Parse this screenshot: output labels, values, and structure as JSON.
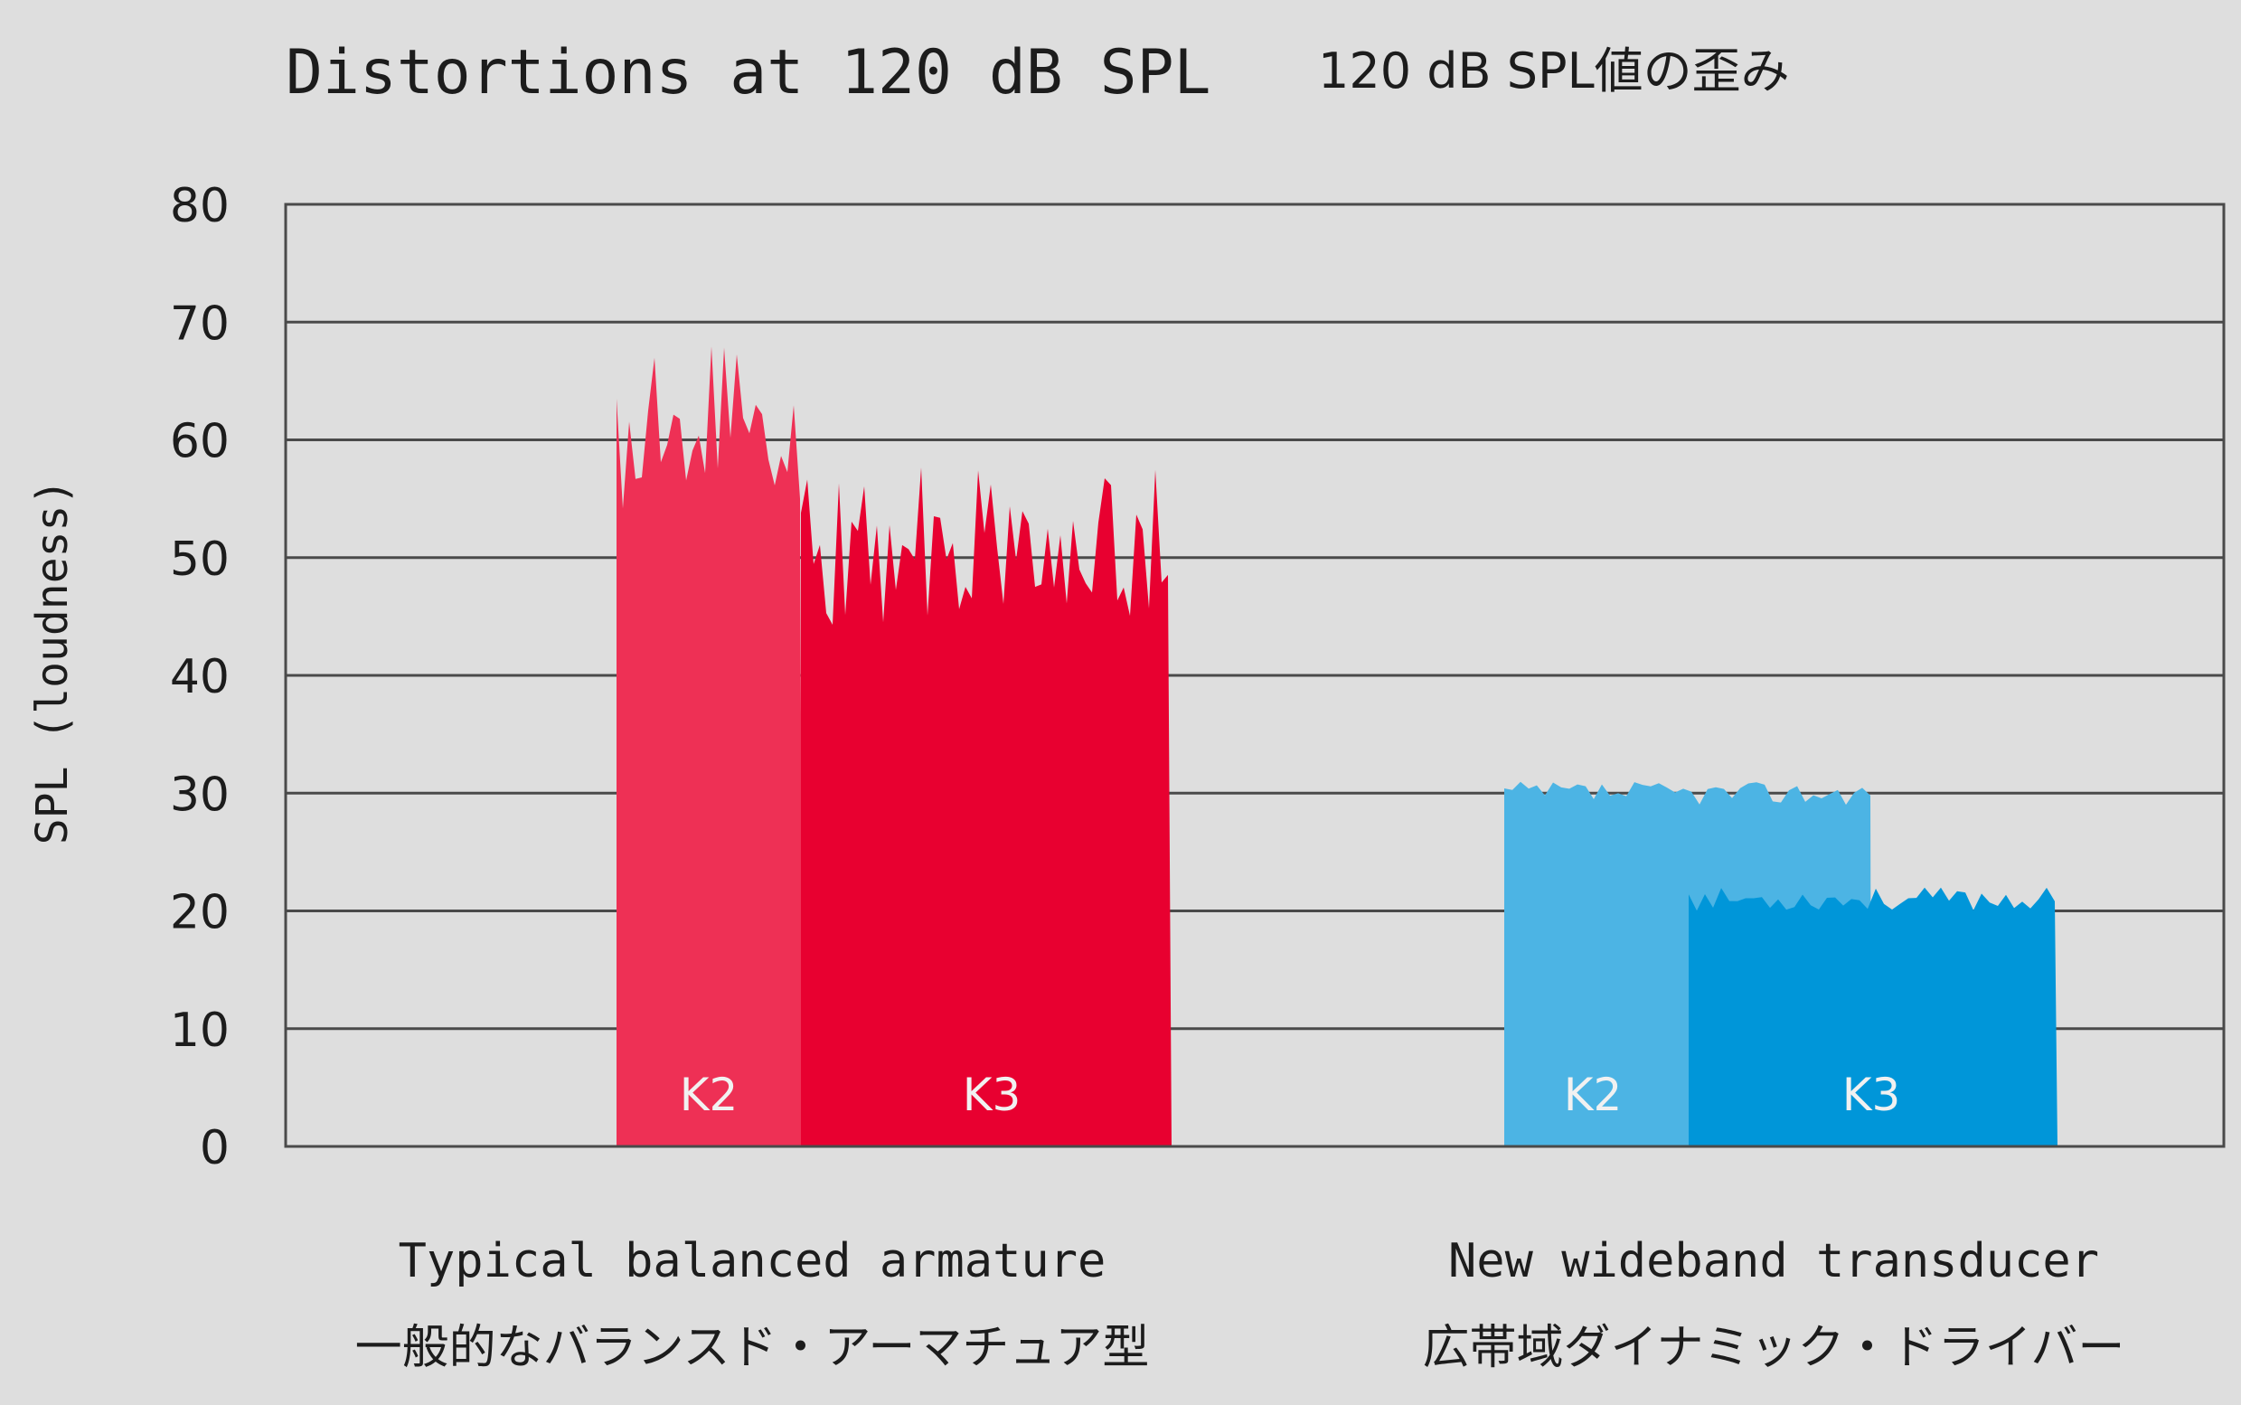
{
  "chart_data": {
    "type": "bar",
    "title": "Distortions at 120 dB SPL",
    "subtitle": "120 dB SPL値の歪み",
    "xlabel": "",
    "ylabel": "SPL (loudness)",
    "ylim": [
      0,
      80
    ],
    "yticks": [
      "0",
      "10",
      "20",
      "30",
      "40",
      "50",
      "60",
      "70",
      "80"
    ],
    "grid": true,
    "categories": [
      {
        "name": "Typical balanced armature",
        "name_ja": "一般的なバランスド・アーマチュア型"
      },
      {
        "name": "New wideband transducer",
        "name_ja": "広帯域ダイナミック・ドライバー"
      }
    ],
    "series": [
      {
        "name": "K2",
        "values": [
          65,
          31
        ]
      },
      {
        "name": "K3",
        "values": [
          55,
          21
        ]
      }
    ],
    "bar_ranges": [
      {
        "series": "K2",
        "category": 0,
        "min": 53,
        "max": 68
      },
      {
        "series": "K3",
        "category": 0,
        "min": 44,
        "max": 58
      },
      {
        "series": "K2",
        "category": 1,
        "min": 29,
        "max": 31
      },
      {
        "series": "K3",
        "category": 1,
        "min": 20,
        "max": 22
      }
    ],
    "colors": {
      "background": "#dedede",
      "grid": "#4a4a4a",
      "text": "#1c1c1c",
      "bar_label": "#f1f1f1",
      "ba_k2": "#ee3055",
      "ba_k3": "#e80030",
      "wb_k2": "#4cb4e4",
      "wb_k3": "#0096d9"
    }
  }
}
